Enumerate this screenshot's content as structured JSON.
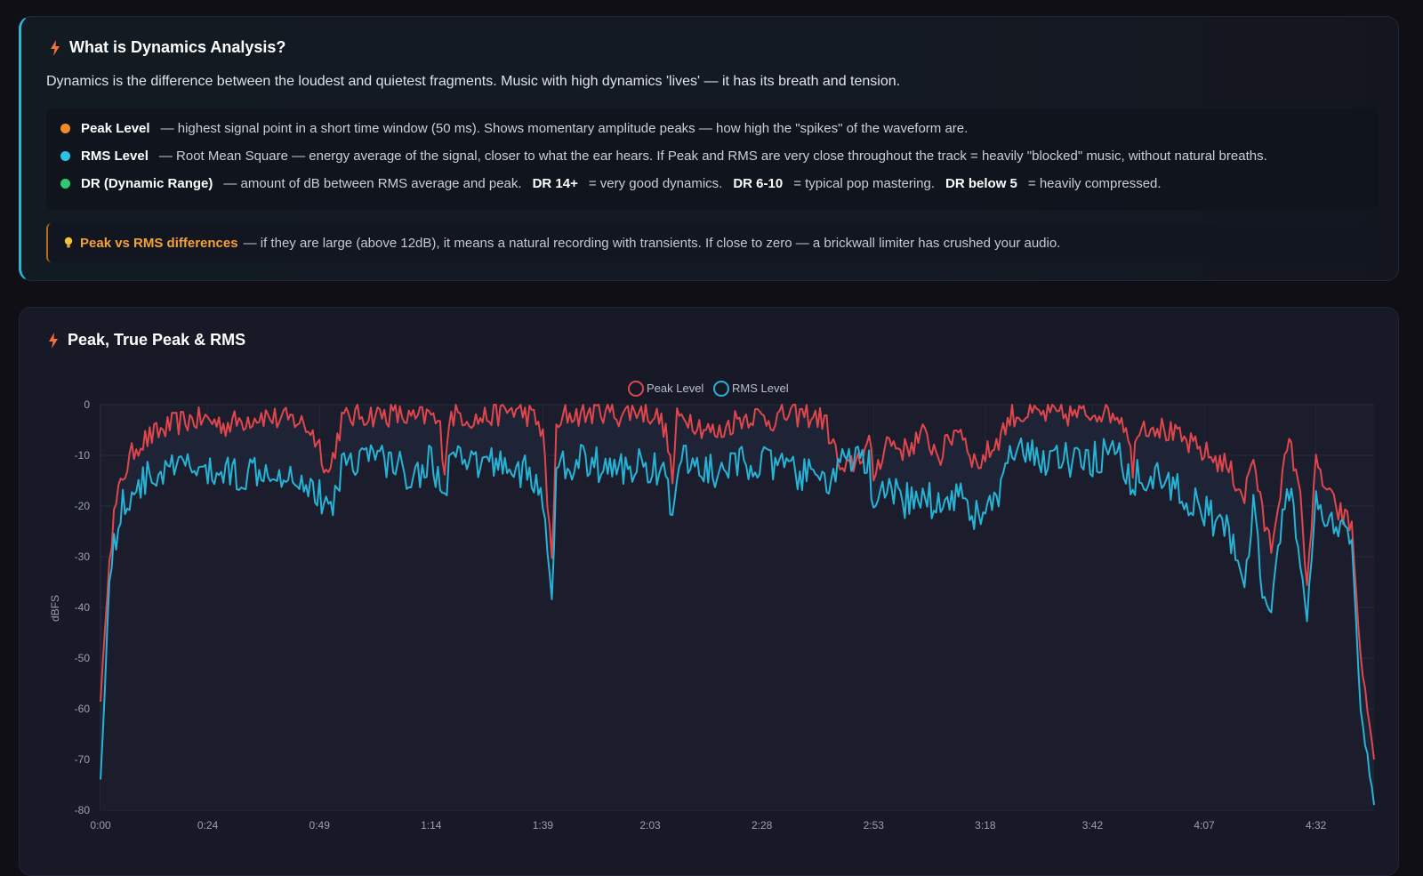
{
  "info": {
    "title": "What is Dynamics Analysis?",
    "intro": "Dynamics is the difference between the loudest and quietest fragments. Music with high dynamics 'lives' — it has its breath and tension.",
    "peak": {
      "term": "Peak Level",
      "text": "— highest signal point in a short time window (50 ms). Shows momentary amplitude peaks — how high the \"spikes\" of the waveform are.",
      "color": "#f28c28"
    },
    "rms": {
      "term": "RMS Level",
      "text": "— Root Mean Square — energy average of the signal, closer to what the ear hears. If Peak and RMS are very close throughout the track = heavily \"blocked\" music, without natural breaths.",
      "color": "#2bc4e6"
    },
    "dr": {
      "term": "DR (Dynamic Range)",
      "text1": "— amount of dB between RMS average and peak.",
      "s1": "DR 14+",
      "text2": "= very good dynamics.",
      "s2": "DR 6-10",
      "text3": "= typical pop mastering.",
      "s3": "DR below 5",
      "text4": "= heavily compressed.",
      "color": "#2ecc71"
    },
    "tip": {
      "strong": "Peak vs RMS differences",
      "text": "— if they are large (above 12dB), it means a natural recording with transients. If close to zero — a brickwall limiter has crushed your audio."
    }
  },
  "chart_title": "Peak, True Peak & RMS",
  "chart_data": {
    "type": "line",
    "title": "Peak, True Peak & RMS",
    "ylabel": "dBFS",
    "xlabel": "",
    "ylim": [
      -80,
      0
    ],
    "yticks": [
      "0",
      "-10",
      "-20",
      "-30",
      "-40",
      "-50",
      "-60",
      "-70",
      "-80"
    ],
    "xticks": [
      "0:00",
      "0:24",
      "0:49",
      "1:14",
      "1:39",
      "2:03",
      "2:28",
      "2:53",
      "3:18",
      "3:42",
      "4:07",
      "4:32"
    ],
    "xlim_seconds": [
      0,
      285
    ],
    "legend_position": "top-center",
    "grid": true,
    "series": [
      {
        "name": "Peak Level",
        "color": "#e0474c",
        "t": [
          0,
          1,
          2,
          3,
          5,
          8,
          12,
          16,
          20,
          24,
          28,
          32,
          36,
          40,
          44,
          47,
          49,
          51,
          54,
          58,
          62,
          66,
          70,
          74,
          76,
          77,
          78,
          79,
          81,
          84,
          88,
          92,
          96,
          99,
          100,
          101,
          102,
          104,
          108,
          112,
          116,
          120,
          124,
          126,
          127,
          128,
          129,
          131,
          134,
          138,
          142,
          146,
          150,
          154,
          158,
          162,
          164,
          166,
          168,
          170,
          172,
          173,
          176,
          180,
          184,
          188,
          192,
          196,
          200,
          204,
          207,
          210,
          213,
          216,
          220,
          224,
          228,
          230,
          231,
          232,
          236,
          240,
          244,
          248,
          252,
          256,
          258,
          260,
          262,
          264,
          266,
          268,
          270,
          272,
          274,
          276,
          278,
          280,
          282,
          285
        ],
        "values": [
          -58,
          -45,
          -30,
          -22,
          -14,
          -8,
          -6,
          -4,
          -3,
          -3,
          -4,
          -3,
          -2,
          -3,
          -3,
          -5,
          -8,
          -14,
          -3,
          -2,
          -2,
          -2,
          -3,
          -2,
          -5,
          -12,
          -3,
          -2,
          -2,
          -3,
          -2,
          -1,
          -2,
          -5,
          -20,
          -30,
          -6,
          -2,
          -2,
          -1,
          -2,
          -1,
          -2,
          -4,
          -8,
          -15,
          -3,
          -2,
          -4,
          -6,
          -3,
          -2,
          -3,
          -2,
          -2,
          -3,
          -8,
          -14,
          -12,
          -10,
          -8,
          -14,
          -7,
          -9,
          -6,
          -10,
          -4,
          -12,
          -8,
          -2,
          -2,
          -2,
          -2,
          -2,
          -2,
          -1,
          -2,
          -5,
          -14,
          -4,
          -4,
          -6,
          -8,
          -10,
          -12,
          -18,
          -10,
          -22,
          -28,
          -16,
          -8,
          -14,
          -35,
          -12,
          -16,
          -20,
          -22,
          -24,
          -50,
          -70
        ]
      },
      {
        "name": "RMS Level",
        "color": "#27b3d6",
        "t": [
          0,
          1,
          2,
          3,
          5,
          8,
          12,
          16,
          20,
          24,
          28,
          32,
          36,
          40,
          44,
          47,
          49,
          51,
          54,
          58,
          62,
          66,
          70,
          74,
          76,
          77,
          78,
          79,
          81,
          84,
          88,
          92,
          96,
          99,
          100,
          101,
          102,
          104,
          108,
          112,
          116,
          120,
          124,
          126,
          127,
          128,
          129,
          131,
          134,
          138,
          142,
          146,
          150,
          154,
          158,
          162,
          164,
          166,
          168,
          170,
          172,
          173,
          176,
          180,
          184,
          188,
          192,
          196,
          200,
          204,
          207,
          210,
          213,
          216,
          220,
          224,
          228,
          230,
          231,
          232,
          236,
          240,
          244,
          248,
          252,
          256,
          258,
          260,
          262,
          264,
          266,
          268,
          270,
          272,
          274,
          276,
          278,
          280,
          282,
          285
        ],
        "values": [
          -74,
          -55,
          -35,
          -28,
          -20,
          -16,
          -14,
          -13,
          -12,
          -14,
          -13,
          -14,
          -12,
          -13,
          -14,
          -16,
          -18,
          -22,
          -12,
          -10,
          -10,
          -12,
          -14,
          -11,
          -15,
          -20,
          -10,
          -11,
          -12,
          -12,
          -11,
          -12,
          -14,
          -18,
          -30,
          -38,
          -14,
          -12,
          -11,
          -12,
          -13,
          -12,
          -12,
          -14,
          -18,
          -22,
          -13,
          -11,
          -12,
          -14,
          -12,
          -11,
          -12,
          -13,
          -14,
          -15,
          -14,
          -12,
          -11,
          -10,
          -12,
          -22,
          -17,
          -19,
          -18,
          -20,
          -17,
          -22,
          -20,
          -10,
          -10,
          -11,
          -10,
          -11,
          -12,
          -10,
          -11,
          -14,
          -20,
          -13,
          -14,
          -16,
          -19,
          -22,
          -25,
          -35,
          -20,
          -38,
          -40,
          -25,
          -18,
          -25,
          -42,
          -20,
          -22,
          -24,
          -26,
          -28,
          -60,
          -79
        ]
      }
    ]
  }
}
